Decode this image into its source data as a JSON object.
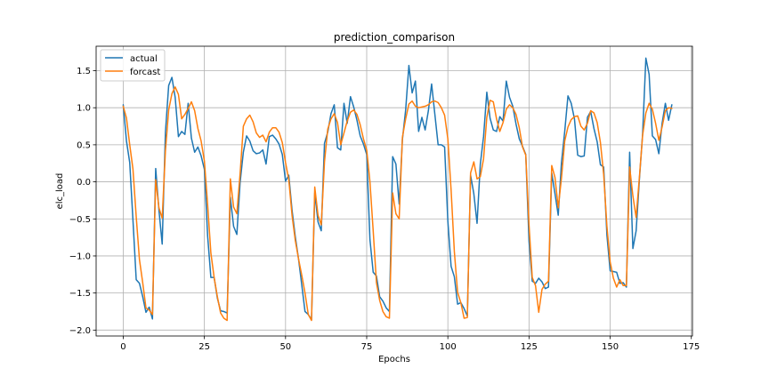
{
  "chart_data": {
    "type": "line",
    "title": "prediction_comparison",
    "xlabel": "Epochs",
    "ylabel": "elc_load",
    "xlim": [
      -8.35,
      175.35
    ],
    "ylim": [
      -2.08,
      1.83
    ],
    "xticks": [
      0,
      25,
      50,
      75,
      100,
      125,
      150,
      175
    ],
    "yticks": [
      -2.0,
      -1.5,
      -1.0,
      -0.5,
      0.0,
      0.5,
      1.0,
      1.5
    ],
    "xtick_labels": [
      "0",
      "25",
      "50",
      "75",
      "100",
      "125",
      "150",
      "175"
    ],
    "ytick_labels": [
      "−2.0",
      "−1.5",
      "−1.0",
      "−0.5",
      "0.0",
      "0.5",
      "1.0",
      "1.5"
    ],
    "grid": true,
    "legend_position": "top-left",
    "series": [
      {
        "name": "actual",
        "color": "#1f77b4",
        "values": [
          1.04,
          0.55,
          0.26,
          -0.52,
          -1.32,
          -1.37,
          -1.55,
          -1.76,
          -1.69,
          -1.85,
          0.18,
          -0.38,
          -0.84,
          0.67,
          1.3,
          1.41,
          1.14,
          0.61,
          0.68,
          0.64,
          1.06,
          0.59,
          0.4,
          0.47,
          0.35,
          0.17,
          -0.73,
          -1.29,
          -1.29,
          -1.57,
          -1.74,
          -1.75,
          -1.77,
          -0.21,
          -0.6,
          -0.71,
          -0.01,
          0.4,
          0.62,
          0.55,
          0.42,
          0.38,
          0.39,
          0.43,
          0.24,
          0.61,
          0.63,
          0.58,
          0.51,
          0.37,
          0.01,
          0.09,
          -0.38,
          -0.74,
          -1.04,
          -1.39,
          -1.75,
          -1.79,
          -1.86,
          -0.15,
          -0.54,
          -0.66,
          0.52,
          0.67,
          0.92,
          1.04,
          0.46,
          0.43,
          1.06,
          0.79,
          1.15,
          1.01,
          0.83,
          0.62,
          0.51,
          0.37,
          -0.78,
          -1.22,
          -1.27,
          -1.55,
          -1.61,
          -1.7,
          -1.75,
          0.34,
          0.24,
          -0.3,
          0.57,
          0.97,
          1.57,
          1.2,
          1.36,
          0.68,
          0.87,
          0.7,
          0.96,
          1.32,
          0.91,
          0.5,
          0.5,
          0.47,
          -0.53,
          -1.14,
          -1.28,
          -1.65,
          -1.63,
          -1.71,
          -1.81,
          0.09,
          -0.16,
          -0.56,
          0.24,
          0.61,
          1.21,
          0.86,
          0.7,
          0.68,
          0.88,
          0.82,
          1.36,
          1.14,
          1.02,
          0.78,
          0.58,
          0.48,
          0.37,
          -0.8,
          -1.34,
          -1.37,
          -1.3,
          -1.35,
          -1.44,
          -1.42,
          0.12,
          -0.16,
          -0.45,
          0.26,
          0.68,
          1.16,
          1.06,
          0.85,
          0.36,
          0.34,
          0.35,
          0.87,
          0.95,
          0.72,
          0.54,
          0.23,
          0.2,
          -0.72,
          -1.2,
          -1.21,
          -1.22,
          -1.37,
          -1.36,
          -1.42,
          0.4,
          -0.9,
          -0.66,
          0.03,
          0.65,
          1.67,
          1.45,
          0.62,
          0.57,
          0.38,
          0.79,
          1.06,
          0.83,
          1.04
        ]
      },
      {
        "name": "forcast",
        "color": "#ff7f0e",
        "values": [
          1.02,
          0.86,
          0.5,
          0.17,
          -0.47,
          -1.05,
          -1.36,
          -1.7,
          -1.73,
          -1.79,
          0.03,
          -0.35,
          -0.49,
          0.42,
          0.97,
          1.19,
          1.28,
          1.18,
          0.85,
          0.91,
          0.99,
          1.08,
          0.96,
          0.72,
          0.55,
          0.28,
          -0.31,
          -0.96,
          -1.29,
          -1.55,
          -1.77,
          -1.84,
          -1.87,
          0.04,
          -0.34,
          -0.43,
          0.11,
          0.75,
          0.85,
          0.9,
          0.81,
          0.66,
          0.6,
          0.63,
          0.54,
          0.67,
          0.73,
          0.73,
          0.67,
          0.53,
          0.26,
          0.03,
          -0.45,
          -0.79,
          -1.04,
          -1.26,
          -1.5,
          -1.79,
          -1.87,
          -0.07,
          -0.45,
          -0.58,
          0.27,
          0.71,
          0.85,
          0.92,
          0.8,
          0.5,
          0.66,
          0.82,
          0.94,
          0.97,
          0.91,
          0.77,
          0.58,
          0.43,
          0.0,
          -0.66,
          -1.36,
          -1.6,
          -1.75,
          -1.82,
          -1.84,
          -0.15,
          -0.43,
          -0.5,
          0.6,
          0.85,
          1.05,
          1.09,
          1.02,
          1.0,
          1.01,
          1.02,
          1.04,
          1.08,
          1.09,
          1.07,
          1.0,
          0.9,
          0.58,
          -0.11,
          -0.94,
          -1.49,
          -1.63,
          -1.84,
          -1.83,
          0.12,
          0.27,
          0.04,
          0.07,
          0.31,
          0.87,
          1.1,
          1.08,
          0.85,
          0.68,
          0.8,
          0.98,
          1.04,
          1.0,
          0.91,
          0.73,
          0.47,
          0.36,
          -0.58,
          -1.29,
          -1.4,
          -1.76,
          -1.45,
          -1.38,
          -1.34,
          0.22,
          0.06,
          -0.35,
          0.05,
          0.55,
          0.74,
          0.84,
          0.88,
          0.89,
          0.75,
          0.7,
          0.79,
          0.96,
          0.93,
          0.8,
          0.53,
          0.1,
          -0.6,
          -1.08,
          -1.3,
          -1.42,
          -1.32,
          -1.4,
          -1.4,
          0.2,
          -0.19,
          -0.48,
          0.06,
          0.63,
          0.93,
          1.06,
          0.98,
          0.79,
          0.56,
          0.74,
          0.96,
          1.0,
          0.99
        ]
      }
    ]
  }
}
